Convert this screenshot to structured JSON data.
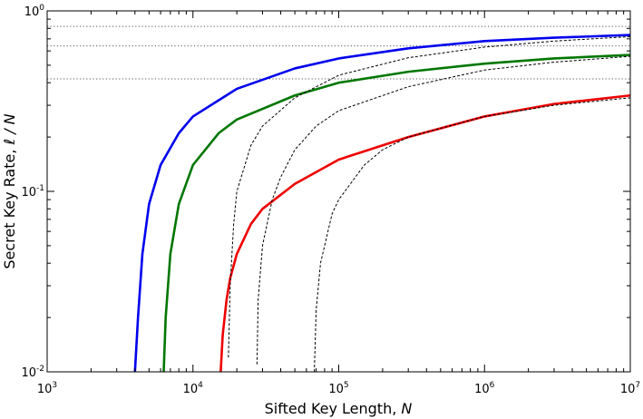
{
  "chart_data": {
    "type": "line",
    "xlabel": "Sifted Key Length, ",
    "xlabel_var": "N",
    "ylabel": "Secret Key Rate, ",
    "ylabel_var": "ℓ / N",
    "x_scale": "log",
    "y_scale": "log",
    "xlim": [
      1000,
      10000000
    ],
    "ylim": [
      0.01,
      1
    ],
    "x_ticks": [
      {
        "base": "10",
        "exp": "3",
        "value": 1000
      },
      {
        "base": "10",
        "exp": "4",
        "value": 10000
      },
      {
        "base": "10",
        "exp": "5",
        "value": 100000
      },
      {
        "base": "10",
        "exp": "6",
        "value": 1000000
      },
      {
        "base": "10",
        "exp": "7",
        "value": 10000000
      }
    ],
    "y_ticks": [
      {
        "base": "10",
        "exp": "-2",
        "value": 0.01
      },
      {
        "base": "10",
        "exp": "-1",
        "value": 0.1
      },
      {
        "base": "10",
        "exp": "0",
        "value": 1
      }
    ],
    "grid": false,
    "legend": "none",
    "reference_lines": [
      {
        "y": 0.82,
        "style": "dotted",
        "color": "#555555"
      },
      {
        "y": 0.64,
        "style": "dotted",
        "color": "#555555"
      },
      {
        "y": 0.42,
        "style": "dotted",
        "color": "#555555"
      }
    ],
    "series": [
      {
        "color": "#0000ee",
        "style": "solid",
        "x": [
          4000,
          4200,
          4500,
          5000,
          6000,
          8000,
          10000,
          20000,
          50000,
          100000,
          300000,
          1000000,
          3000000,
          10000000
        ],
        "y": [
          0.01,
          0.02,
          0.045,
          0.085,
          0.14,
          0.21,
          0.26,
          0.37,
          0.48,
          0.545,
          0.62,
          0.68,
          0.71,
          0.735
        ]
      },
      {
        "color": "#007700",
        "style": "solid",
        "x": [
          6300,
          6500,
          7000,
          8000,
          10000,
          15000,
          20000,
          50000,
          100000,
          300000,
          1000000,
          3000000,
          10000000
        ],
        "y": [
          0.01,
          0.02,
          0.045,
          0.085,
          0.14,
          0.21,
          0.25,
          0.34,
          0.4,
          0.46,
          0.51,
          0.545,
          0.57
        ]
      },
      {
        "color": "#ee0000",
        "style": "solid",
        "x": [
          15500,
          16000,
          17000,
          18000,
          20000,
          25000,
          30000,
          50000,
          100000,
          300000,
          1000000,
          3000000,
          10000000
        ],
        "y": [
          0.01,
          0.016,
          0.025,
          0.033,
          0.045,
          0.066,
          0.08,
          0.11,
          0.15,
          0.2,
          0.26,
          0.305,
          0.34
        ]
      },
      {
        "color": "#000000",
        "style": "dashed",
        "x": [
          17500,
          18000,
          19000,
          20000,
          25000,
          30000,
          50000,
          100000,
          300000,
          1000000,
          3000000,
          10000000
        ],
        "y": [
          0.012,
          0.03,
          0.065,
          0.1,
          0.18,
          0.23,
          0.33,
          0.44,
          0.55,
          0.63,
          0.68,
          0.72
        ]
      },
      {
        "color": "#000000",
        "style": "dashed",
        "x": [
          27500,
          28000,
          30000,
          35000,
          40000,
          50000,
          70000,
          100000,
          300000,
          1000000,
          3000000,
          10000000
        ],
        "y": [
          0.011,
          0.025,
          0.05,
          0.09,
          0.12,
          0.17,
          0.23,
          0.28,
          0.38,
          0.47,
          0.52,
          0.56
        ]
      },
      {
        "color": "#000000",
        "style": "dashed",
        "x": [
          68000,
          70000,
          75000,
          90000,
          100000,
          150000,
          200000,
          300000,
          1000000,
          3000000,
          10000000
        ],
        "y": [
          0.01,
          0.022,
          0.04,
          0.075,
          0.09,
          0.14,
          0.17,
          0.2,
          0.26,
          0.3,
          0.33
        ]
      }
    ]
  }
}
